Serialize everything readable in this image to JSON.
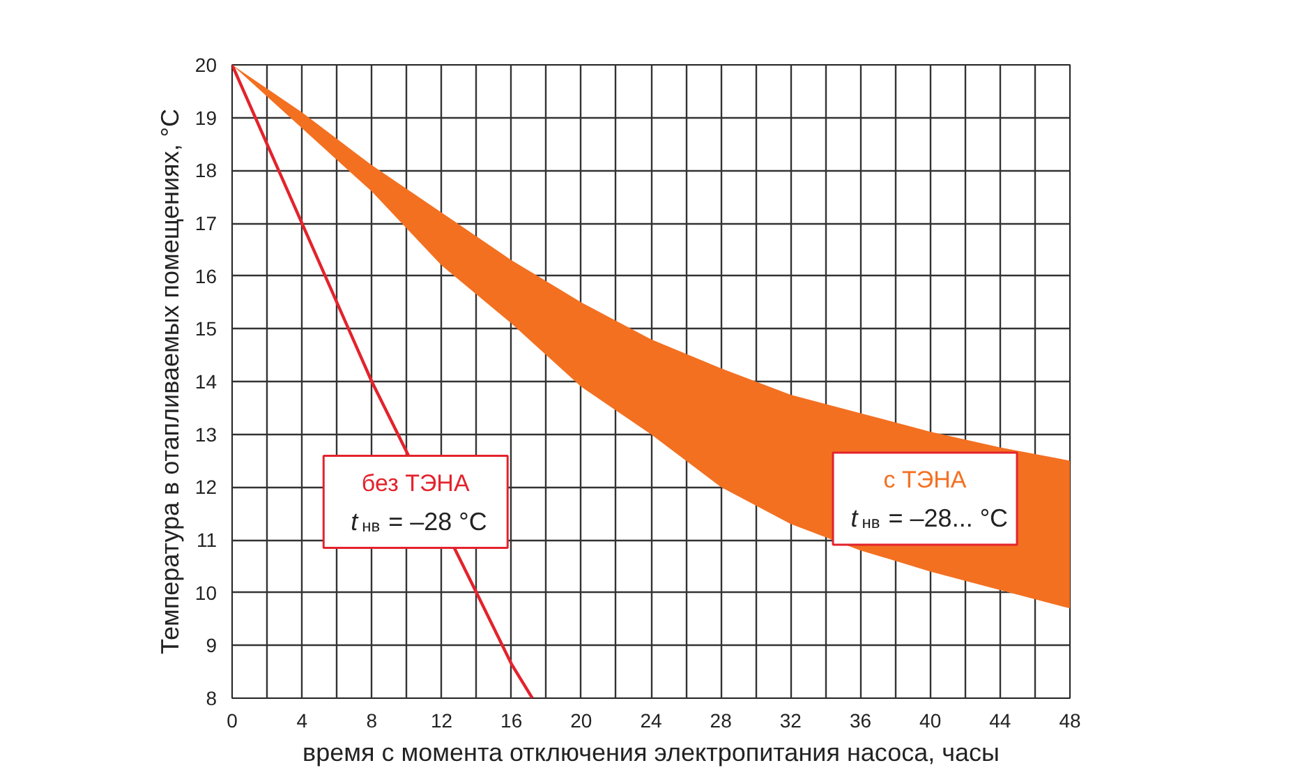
{
  "chart_data": {
    "type": "line",
    "xlabel": "время с момента отключения электропитания насоса, часы",
    "ylabel": "Температура в отапливаемых помещениях, °C",
    "xlim": [
      0,
      48
    ],
    "ylim": [
      8,
      20
    ],
    "xticks": [
      0,
      {
        "value": 2,
        "label": null
      },
      4,
      {
        "value": 6,
        "label": null
      },
      8,
      {
        "value": 10,
        "label": null
      },
      12,
      {
        "value": 14,
        "label": null
      },
      16,
      {
        "value": 18,
        "label": null
      },
      20,
      {
        "value": 22,
        "label": null
      },
      24,
      {
        "value": 26,
        "label": null
      },
      28,
      {
        "value": 30,
        "label": null
      },
      32,
      {
        "value": 34,
        "label": null
      },
      36,
      {
        "value": 38,
        "label": null
      },
      40,
      {
        "value": 42,
        "label": null
      },
      44,
      {
        "value": 46,
        "label": null
      },
      48
    ],
    "yticks": [
      8,
      9,
      10,
      11,
      12,
      13,
      14,
      15,
      16,
      17,
      18,
      19,
      20
    ],
    "grid": true,
    "series": [
      {
        "name": "без ТЭНА",
        "color": "#e3232c",
        "x": [
          0,
          8,
          14,
          16,
          17.2
        ],
        "values": [
          20,
          14,
          10,
          8.65,
          8
        ]
      },
      {
        "name": "с ТЭНА",
        "type": "area",
        "color": "#f37021",
        "x": [
          0,
          4,
          8,
          12,
          16,
          20,
          24,
          28,
          32,
          36,
          40,
          44,
          48
        ],
        "values": [
          null,
          null,
          null,
          null,
          null,
          null,
          null,
          null,
          null,
          null,
          null,
          null,
          null
        ],
        "upper": [
          20,
          19.1,
          18.1,
          17.2,
          16.3,
          15.5,
          14.8,
          14.25,
          13.75,
          13.4,
          13.05,
          12.75,
          12.5
        ],
        "lower": [
          20,
          18.8,
          17.6,
          16.2,
          15.1,
          13.9,
          13.0,
          12.0,
          11.3,
          10.8,
          10.4,
          10.05,
          9.7
        ]
      }
    ],
    "annotations": [
      "t$_{нв}$ = –28 °C",
      "t$_{нв}$ = –28... °C"
    ]
  }
}
